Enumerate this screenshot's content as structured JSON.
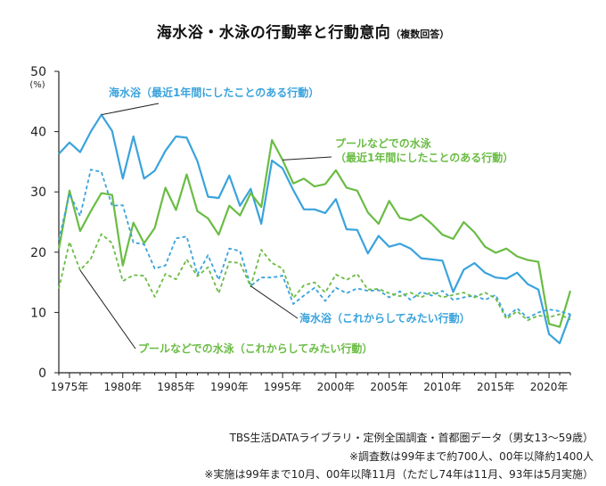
{
  "title": "海水浴・水泳の行動率と行動意向",
  "subtitle": "（複数回答）",
  "notes": {
    "source": "TBS生活DATAライブラリ・定例全国調査・首都圏データ（男女13〜59歳）",
    "count": "※調査数は99年まで約700人、00年以降約1400人",
    "timing": "※実施は99年まで10月、00年以降11月（ただし74年は11月、93年は5月実施）"
  },
  "chart_data": {
    "type": "line",
    "ylabel": "(%)",
    "ylim": [
      0,
      50
    ],
    "yticks": [
      0,
      10,
      20,
      30,
      40,
      50
    ],
    "xlim": [
      1974,
      2022
    ],
    "xticks": [
      "1975年",
      "1980年",
      "1985年",
      "1990年",
      "1995年",
      "2000年",
      "2005年",
      "2010年",
      "2015年",
      "2020年"
    ],
    "x": [
      1974,
      1975,
      1976,
      1977,
      1978,
      1979,
      1980,
      1981,
      1982,
      1983,
      1984,
      1985,
      1986,
      1987,
      1988,
      1989,
      1990,
      1991,
      1992,
      1993,
      1994,
      1995,
      1996,
      1997,
      1998,
      1999,
      2000,
      2001,
      2002,
      2003,
      2004,
      2005,
      2006,
      2007,
      2008,
      2009,
      2010,
      2011,
      2012,
      2013,
      2014,
      2015,
      2016,
      2017,
      2018,
      2019,
      2020,
      2021,
      2022
    ],
    "series": [
      {
        "name": "海水浴（最近1年間にしたことのある行動）",
        "color": "#3aa3dc",
        "style": "solid",
        "values": [
          36.3,
          38.2,
          36.6,
          40.0,
          42.8,
          40.1,
          32.2,
          39.2,
          32.2,
          33.5,
          36.8,
          39.2,
          39.0,
          35.1,
          29.2,
          29.0,
          32.7,
          27.7,
          30.5,
          24.7,
          35.2,
          33.9,
          30.3,
          27.1,
          27.1,
          26.5,
          28.8,
          23.8,
          23.7,
          19.8,
          22.7,
          20.9,
          21.4,
          20.6,
          19.0,
          18.8,
          18.6,
          13.4,
          17.1,
          18.2,
          16.6,
          15.8,
          15.6,
          16.6,
          14.7,
          13.8,
          6.4,
          4.9,
          9.7
        ]
      },
      {
        "name": "プールなどでの水泳（最近1年間にしたことのある行動）",
        "color": "#6abc44",
        "style": "solid",
        "values": [
          20.5,
          30.2,
          23.5,
          26.8,
          29.8,
          29.5,
          17.8,
          24.9,
          21.5,
          24.0,
          30.7,
          27.0,
          32.9,
          26.8,
          25.6,
          22.9,
          27.7,
          26.1,
          29.8,
          27.5,
          38.6,
          35.3,
          31.4,
          32.2,
          30.9,
          31.3,
          33.6,
          30.7,
          30.2,
          26.6,
          24.7,
          28.5,
          25.7,
          25.3,
          26.2,
          24.7,
          22.9,
          22.2,
          25.0,
          23.3,
          20.9,
          19.9,
          20.6,
          19.3,
          18.7,
          18.4,
          8.1,
          7.6,
          13.6
        ]
      },
      {
        "name": "海水浴（これからしてみたい行動）",
        "color": "#3aa3dc",
        "style": "dashed",
        "values": [
          22.0,
          29.7,
          26.0,
          33.7,
          33.3,
          27.7,
          27.8,
          21.6,
          21.3,
          17.3,
          17.8,
          22.3,
          22.6,
          16.3,
          19.5,
          15.4,
          20.6,
          20.2,
          14.4,
          15.8,
          15.8,
          16.1,
          11.4,
          12.8,
          14.1,
          11.9,
          14.1,
          13.2,
          14.0,
          13.6,
          13.7,
          12.5,
          13.5,
          12.1,
          13.4,
          12.8,
          13.6,
          12.1,
          12.5,
          12.8,
          12.1,
          12.9,
          9.2,
          10.7,
          9.1,
          10.0,
          10.5,
          10.2,
          9.7
        ]
      },
      {
        "name": "プールなどでの水泳（これからしてみたい行動）",
        "color": "#6abc44",
        "style": "dashed",
        "values": [
          13.9,
          21.7,
          17.0,
          18.9,
          23.0,
          21.5,
          15.2,
          16.2,
          16.1,
          12.6,
          16.4,
          15.5,
          18.8,
          16.0,
          17.5,
          13.2,
          18.4,
          18.2,
          14.3,
          20.4,
          18.2,
          17.3,
          12.4,
          14.5,
          15.0,
          13.3,
          16.3,
          15.4,
          16.4,
          13.8,
          13.9,
          13.2,
          12.7,
          13.3,
          12.5,
          13.4,
          12.5,
          12.9,
          13.3,
          12.5,
          13.3,
          12.3,
          8.9,
          10.2,
          8.7,
          9.5,
          9.2,
          9.7,
          8.8
        ]
      }
    ],
    "annotations": [
      {
        "lines": [
          "海水浴（最近1年間にしたことのある行動）"
        ],
        "color": "#3aa3dc",
        "series": 0
      },
      {
        "lines": [
          "プールなどでの水泳",
          "（最近1年間にしたことのある行動）"
        ],
        "color": "#6abc44",
        "series": 1
      },
      {
        "lines": [
          "海水浴（これからしてみたい行動）"
        ],
        "color": "#3aa3dc",
        "series": 2
      },
      {
        "lines": [
          "プールなどでの水泳（これからしてみたい行動）"
        ],
        "color": "#6abc44",
        "series": 3
      }
    ]
  }
}
